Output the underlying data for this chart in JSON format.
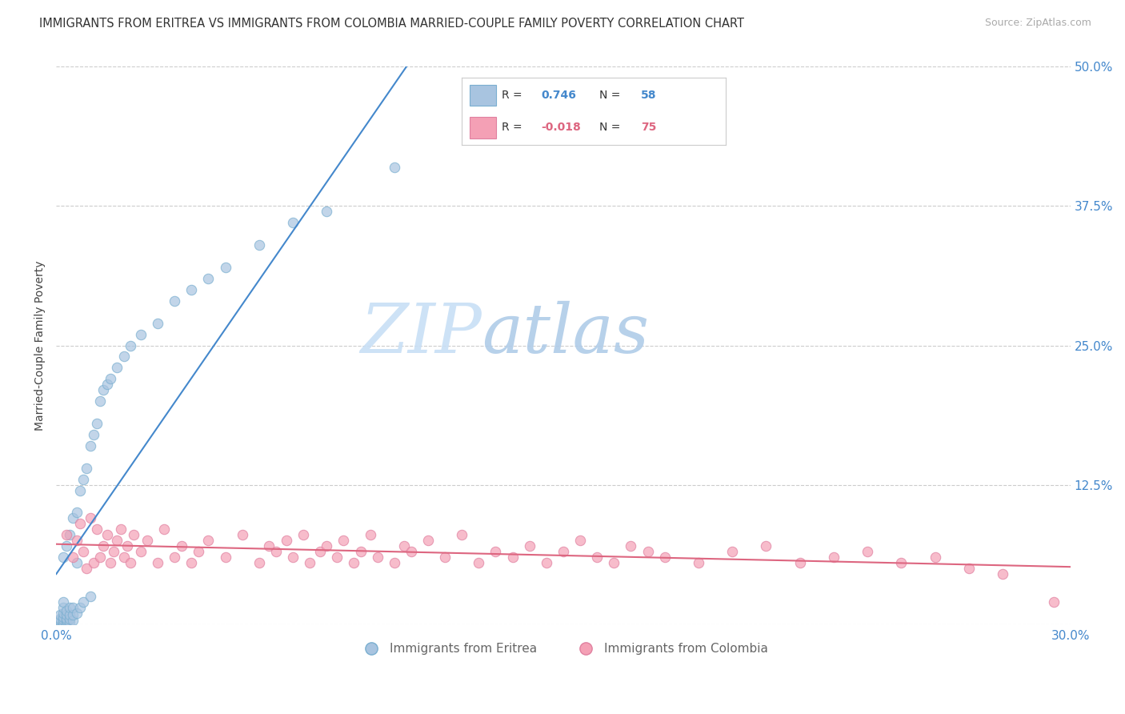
{
  "title": "IMMIGRANTS FROM ERITREA VS IMMIGRANTS FROM COLOMBIA MARRIED-COUPLE FAMILY POVERTY CORRELATION CHART",
  "source": "Source: ZipAtlas.com",
  "ylabel": "Married-Couple Family Poverty",
  "xlim": [
    0,
    0.3
  ],
  "ylim": [
    0,
    0.5
  ],
  "xticks": [
    0.0,
    0.05,
    0.1,
    0.15,
    0.2,
    0.25,
    0.3
  ],
  "xticklabels": [
    "0.0%",
    "",
    "",
    "",
    "",
    "",
    "30.0%"
  ],
  "yticks": [
    0.0,
    0.125,
    0.25,
    0.375,
    0.5
  ],
  "right_yticklabels": [
    "",
    "12.5%",
    "25.0%",
    "37.5%",
    "50.0%"
  ],
  "eritrea_color": "#a8c4e0",
  "eritrea_edge": "#7aafd0",
  "colombia_color": "#f4a0b5",
  "colombia_edge": "#e080a0",
  "eritrea_R": 0.746,
  "eritrea_N": 58,
  "colombia_R": -0.018,
  "colombia_N": 75,
  "eritrea_line_color": "#4488cc",
  "colombia_line_color": "#dd6680",
  "legend_eritrea": "Immigrants from Eritrea",
  "legend_colombia": "Immigrants from Colombia",
  "title_fontsize": 10.5,
  "source_fontsize": 9,
  "tick_fontsize": 11,
  "ylabel_fontsize": 10,
  "eritrea_x": [
    0.001,
    0.001,
    0.001,
    0.001,
    0.001,
    0.002,
    0.002,
    0.002,
    0.002,
    0.002,
    0.002,
    0.002,
    0.002,
    0.003,
    0.003,
    0.003,
    0.003,
    0.003,
    0.003,
    0.004,
    0.004,
    0.004,
    0.004,
    0.004,
    0.005,
    0.005,
    0.005,
    0.005,
    0.006,
    0.006,
    0.006,
    0.007,
    0.007,
    0.008,
    0.008,
    0.009,
    0.01,
    0.01,
    0.011,
    0.012,
    0.013,
    0.014,
    0.015,
    0.016,
    0.018,
    0.02,
    0.022,
    0.025,
    0.03,
    0.035,
    0.04,
    0.045,
    0.05,
    0.06,
    0.07,
    0.08,
    0.1,
    0.13
  ],
  "eritrea_y": [
    0.0,
    0.002,
    0.003,
    0.005,
    0.008,
    0.0,
    0.002,
    0.004,
    0.006,
    0.01,
    0.015,
    0.02,
    0.06,
    0.0,
    0.003,
    0.005,
    0.008,
    0.012,
    0.07,
    0.002,
    0.005,
    0.008,
    0.015,
    0.08,
    0.003,
    0.008,
    0.015,
    0.095,
    0.01,
    0.055,
    0.1,
    0.015,
    0.12,
    0.02,
    0.13,
    0.14,
    0.025,
    0.16,
    0.17,
    0.18,
    0.2,
    0.21,
    0.215,
    0.22,
    0.23,
    0.24,
    0.25,
    0.26,
    0.27,
    0.29,
    0.3,
    0.31,
    0.32,
    0.34,
    0.36,
    0.37,
    0.41,
    0.45
  ],
  "colombia_x": [
    0.003,
    0.005,
    0.006,
    0.007,
    0.008,
    0.009,
    0.01,
    0.011,
    0.012,
    0.013,
    0.014,
    0.015,
    0.016,
    0.017,
    0.018,
    0.019,
    0.02,
    0.021,
    0.022,
    0.023,
    0.025,
    0.027,
    0.03,
    0.032,
    0.035,
    0.037,
    0.04,
    0.042,
    0.045,
    0.05,
    0.055,
    0.06,
    0.063,
    0.065,
    0.068,
    0.07,
    0.073,
    0.075,
    0.078,
    0.08,
    0.083,
    0.085,
    0.088,
    0.09,
    0.093,
    0.095,
    0.1,
    0.103,
    0.105,
    0.11,
    0.115,
    0.12,
    0.125,
    0.13,
    0.135,
    0.14,
    0.145,
    0.15,
    0.155,
    0.16,
    0.165,
    0.17,
    0.175,
    0.18,
    0.19,
    0.2,
    0.21,
    0.22,
    0.23,
    0.24,
    0.25,
    0.26,
    0.27,
    0.28,
    0.295
  ],
  "colombia_y": [
    0.08,
    0.06,
    0.075,
    0.09,
    0.065,
    0.05,
    0.095,
    0.055,
    0.085,
    0.06,
    0.07,
    0.08,
    0.055,
    0.065,
    0.075,
    0.085,
    0.06,
    0.07,
    0.055,
    0.08,
    0.065,
    0.075,
    0.055,
    0.085,
    0.06,
    0.07,
    0.055,
    0.065,
    0.075,
    0.06,
    0.08,
    0.055,
    0.07,
    0.065,
    0.075,
    0.06,
    0.08,
    0.055,
    0.065,
    0.07,
    0.06,
    0.075,
    0.055,
    0.065,
    0.08,
    0.06,
    0.055,
    0.07,
    0.065,
    0.075,
    0.06,
    0.08,
    0.055,
    0.065,
    0.06,
    0.07,
    0.055,
    0.065,
    0.075,
    0.06,
    0.055,
    0.07,
    0.065,
    0.06,
    0.055,
    0.065,
    0.07,
    0.055,
    0.06,
    0.065,
    0.055,
    0.06,
    0.05,
    0.045,
    0.02
  ]
}
